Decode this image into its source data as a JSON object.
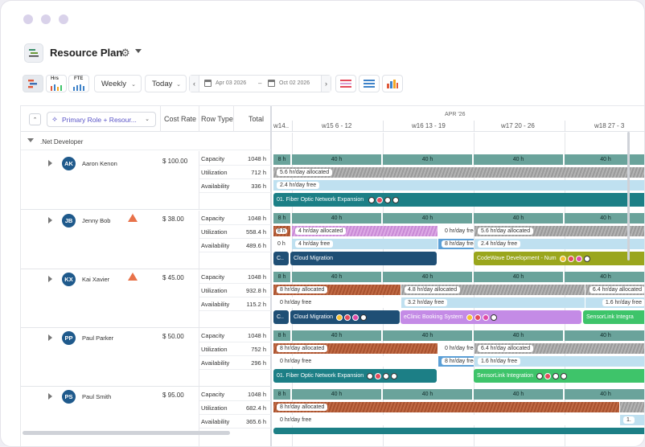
{
  "app": {
    "title": "Resource Plan"
  },
  "toolbar": {
    "view": "Weekly",
    "today": "Today",
    "date_from": "Apr 03 2026",
    "date_to": "Oct 02 2026",
    "btn_hrs": "Hrs",
    "btn_fte": "FTE"
  },
  "grid": {
    "group_by": "Primary Role + Resour...",
    "col_cost_rate": "Cost Rate",
    "col_row_type": "Row Type",
    "col_total": "Total",
    "month": "APR '26",
    "weeks": [
      "w14..",
      "w15 6 - 12",
      "w16 13 - 19",
      "w17 20 - 26",
      "w18 27 - 3"
    ],
    "group_name": ".Net Developer",
    "row_types": [
      "Capacity",
      "Utilization",
      "Availability"
    ]
  },
  "people": [
    {
      "initials": "AK",
      "name": "Aaron Kenon",
      "rate": "$ 100.00",
      "warning": false,
      "totals": [
        "1048 h",
        "712 h",
        "336 h"
      ]
    },
    {
      "initials": "JB",
      "name": "Jenny Bob",
      "rate": "$ 38.00",
      "warning": true,
      "totals": [
        "1048 h",
        "558.4 h",
        "489.6 h"
      ]
    },
    {
      "initials": "KX",
      "name": "Kai Xavier",
      "rate": "$ 45.00",
      "warning": true,
      "totals": [
        "1048 h",
        "932.8 h",
        "115.2 h"
      ]
    },
    {
      "initials": "PP",
      "name": "Paul Parker",
      "rate": "$ 50.00",
      "warning": false,
      "totals": [
        "1048 h",
        "752 h",
        "296 h"
      ]
    },
    {
      "initials": "PS",
      "name": "Paul Smith",
      "rate": "$ 95.00",
      "warning": false,
      "totals": [
        "1048 h",
        "682.4 h",
        "365.6 h"
      ]
    }
  ],
  "timeline": {
    "cap_short": "8 h",
    "cap_week": "40 h",
    "p0": {
      "util": "5.6 hr/day allocated",
      "avail": "2.4 hr/day free",
      "project": "01. Fiber Optic Network Expansion"
    },
    "p1": {
      "util_a": "8 h",
      "util_b": "4 hr/day allocated",
      "util_c": "0 hr/day free",
      "util_d": "5.6 hr/day allocated",
      "avail_a": "0 h",
      "avail_b": "4 hr/day free",
      "avail_c": "8 hr/day free",
      "avail_d": "2.4 hr/day free",
      "proj_a": "C..",
      "proj_b": "Cloud Migration",
      "proj_c": "CodeWave Development - Num"
    },
    "p2": {
      "util_a": "8 hr/day allocated",
      "util_b": "4.8 hr/day allocated",
      "util_c": "6.4 hr/day allocated",
      "avail_a": "0 hr/day free",
      "avail_b": "3.2 hr/day free",
      "avail_c": "1.6 hr/day free",
      "proj_a": "C..",
      "proj_b": "Cloud Migration",
      "proj_c": "eClinic Booking System",
      "proj_d": "SensorLink Integra"
    },
    "p3": {
      "util_a": "8 hr/day allocated",
      "util_b": "0 hr/day free",
      "util_c": "6.4 hr/day allocated",
      "avail_a": "0 hr/day free",
      "avail_b": "8 hr/day free",
      "avail_c": "1.6 hr/day free",
      "proj_a": "01. Fiber Optic Network Expansion",
      "proj_b": "SensorLink Integration"
    },
    "p4": {
      "util_a": "8 hr/day allocated",
      "avail_a": "0 hr/day free",
      "avail_b": "1."
    }
  }
}
